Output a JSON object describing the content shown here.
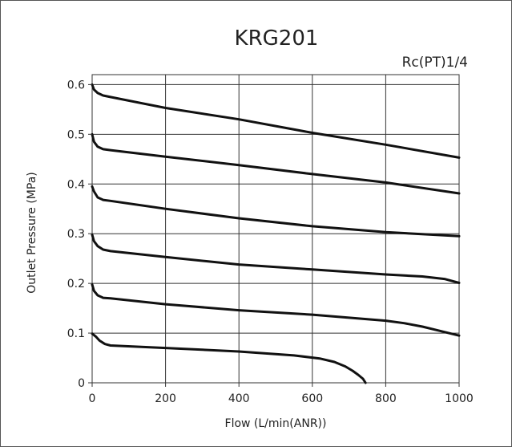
{
  "chart_data": {
    "type": "line",
    "title": "KRG201",
    "subtitle": "Rc(PT)1/4",
    "xlabel": "Flow (L/min(ANR))",
    "ylabel": "Outlet Pressure (MPa)",
    "xlim": [
      0,
      1000
    ],
    "ylim": [
      0,
      0.62
    ],
    "x_ticks": [
      "0",
      "200",
      "400",
      "600",
      "800",
      "1000"
    ],
    "y_ticks": [
      "0",
      "0.1",
      "0.2",
      "0.3",
      "0.4",
      "0.5",
      "0.6"
    ],
    "x_tick_values": [
      0,
      200,
      400,
      600,
      800,
      1000
    ],
    "y_tick_values": [
      0,
      0.1,
      0.2,
      0.3,
      0.4,
      0.5,
      0.6
    ],
    "grid": true,
    "series": [
      {
        "points": [
          [
            0,
            0.6
          ],
          [
            5,
            0.59
          ],
          [
            15,
            0.583
          ],
          [
            30,
            0.578
          ],
          [
            50,
            0.575
          ],
          [
            200,
            0.553
          ],
          [
            400,
            0.53
          ],
          [
            600,
            0.503
          ],
          [
            800,
            0.479
          ],
          [
            1000,
            0.453
          ]
        ]
      },
      {
        "points": [
          [
            0,
            0.5
          ],
          [
            5,
            0.485
          ],
          [
            15,
            0.475
          ],
          [
            30,
            0.47
          ],
          [
            50,
            0.468
          ],
          [
            200,
            0.455
          ],
          [
            400,
            0.438
          ],
          [
            600,
            0.42
          ],
          [
            800,
            0.403
          ],
          [
            1000,
            0.381
          ]
        ]
      },
      {
        "points": [
          [
            0,
            0.395
          ],
          [
            5,
            0.385
          ],
          [
            15,
            0.373
          ],
          [
            30,
            0.368
          ],
          [
            50,
            0.366
          ],
          [
            200,
            0.35
          ],
          [
            400,
            0.331
          ],
          [
            600,
            0.315
          ],
          [
            800,
            0.303
          ],
          [
            1000,
            0.295
          ]
        ]
      },
      {
        "points": [
          [
            0,
            0.298
          ],
          [
            5,
            0.285
          ],
          [
            15,
            0.275
          ],
          [
            30,
            0.268
          ],
          [
            50,
            0.265
          ],
          [
            200,
            0.253
          ],
          [
            400,
            0.238
          ],
          [
            600,
            0.228
          ],
          [
            800,
            0.218
          ],
          [
            900,
            0.214
          ],
          [
            960,
            0.209
          ],
          [
            1000,
            0.201
          ]
        ]
      },
      {
        "points": [
          [
            0,
            0.198
          ],
          [
            5,
            0.185
          ],
          [
            15,
            0.176
          ],
          [
            30,
            0.171
          ],
          [
            50,
            0.17
          ],
          [
            200,
            0.158
          ],
          [
            400,
            0.146
          ],
          [
            600,
            0.137
          ],
          [
            800,
            0.125
          ],
          [
            850,
            0.12
          ],
          [
            900,
            0.113
          ],
          [
            950,
            0.104
          ],
          [
            1000,
            0.095
          ]
        ]
      },
      {
        "points": [
          [
            0,
            0.099
          ],
          [
            10,
            0.093
          ],
          [
            20,
            0.085
          ],
          [
            35,
            0.078
          ],
          [
            50,
            0.075
          ],
          [
            200,
            0.07
          ],
          [
            400,
            0.063
          ],
          [
            550,
            0.055
          ],
          [
            620,
            0.049
          ],
          [
            660,
            0.042
          ],
          [
            690,
            0.033
          ],
          [
            710,
            0.024
          ],
          [
            725,
            0.016
          ],
          [
            738,
            0.008
          ],
          [
            745,
            0.0
          ]
        ]
      }
    ]
  }
}
